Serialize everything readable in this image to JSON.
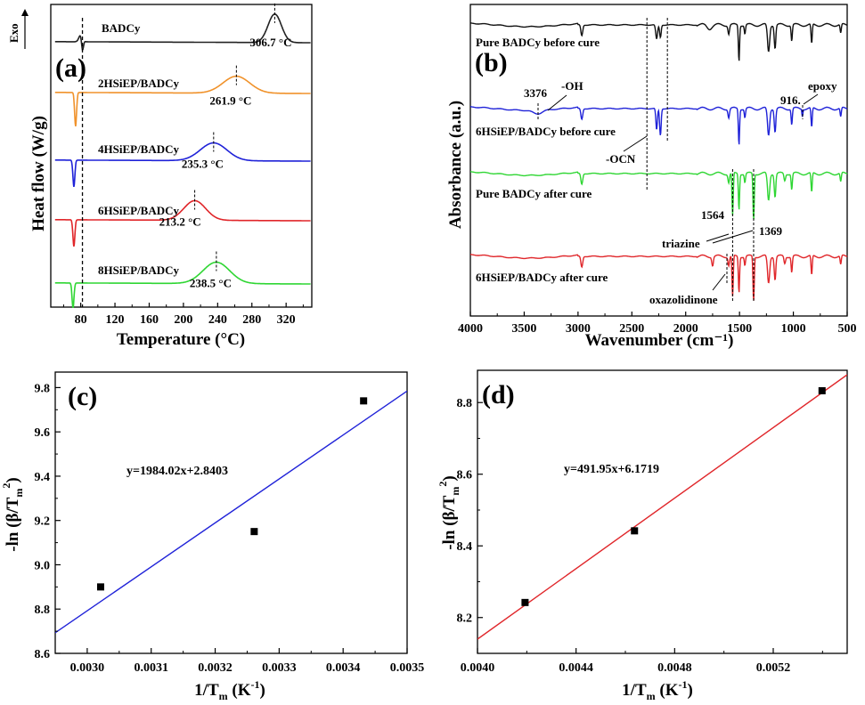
{
  "chart_data": [
    {
      "id": "a",
      "panel_label": "(a)",
      "type": "line",
      "xlabel": "Temperature (°C)",
      "ylabel": "Heat flow (W/g)",
      "exo_label": "Exo",
      "xlim": [
        45,
        350
      ],
      "ticks": [
        80,
        120,
        160,
        200,
        240,
        280,
        320
      ],
      "tick_labels": [
        "80",
        "120",
        "160",
        "200",
        "240",
        "280",
        "320"
      ],
      "dashed_reference_x": 82,
      "series": [
        {
          "name": "BADCy",
          "color": "#222222",
          "endo_temp": 82,
          "peak_temp": 306.7,
          "peak_label": "306.7 °C"
        },
        {
          "name": "2HSiEP/BADCy",
          "color": "#f0922b",
          "endo_temp": 74,
          "peak_temp": 261.9,
          "peak_label": "261.9 °C"
        },
        {
          "name": "4HSiEP/BADCy",
          "color": "#1f22d8",
          "endo_temp": 72,
          "peak_temp": 235.3,
          "peak_label": "235.3 °C"
        },
        {
          "name": "6HSiEP/BADCy",
          "color": "#e0262a",
          "endo_temp": 72,
          "peak_temp": 213.2,
          "peak_label": "213.2 °C"
        },
        {
          "name": "8HSiEP/BADCy",
          "color": "#2fd633",
          "endo_temp": 71,
          "peak_temp": 238.5,
          "peak_label": "238.5 °C"
        }
      ]
    },
    {
      "id": "b",
      "panel_label": "(b)",
      "type": "line",
      "xlabel": "Wavenumber (cm⁻¹)",
      "ylabel": "Absorbance (a.u.)",
      "xlim": [
        4000,
        500
      ],
      "ticks": [
        4000,
        3500,
        3000,
        2500,
        2000,
        1500,
        1000,
        500
      ],
      "tick_labels": [
        "4000",
        "3500",
        "3000",
        "2500",
        "2000",
        "1500",
        "1000",
        "500"
      ],
      "series": [
        {
          "name": "Pure BADCy before cure",
          "color": "#111111"
        },
        {
          "name": "6HSiEP/BADCy before cure",
          "color": "#1f22d8"
        },
        {
          "name": "Pure BADCy after cure",
          "color": "#2fd633"
        },
        {
          "name": "6HSiEP/BADCy after cure",
          "color": "#e0262a"
        }
      ],
      "dashed_lines_x": [
        2360,
        2170,
        1564,
        1369
      ],
      "annotations": {
        "v3376": "3376",
        "oh": "-OH",
        "ocn": "-OCN",
        "v916": "916.",
        "epoxy": "epoxy",
        "v1564": "1564",
        "v1369": "1369",
        "triazine": "triazine",
        "oxazolidinone": "oxazolidinone"
      }
    },
    {
      "id": "c",
      "panel_label": "(c)",
      "type": "scatter",
      "xlabel_main": "1/T",
      "xlabel_sub": "m",
      "xlabel_unit": " (K",
      "xlabel_sup": "-1",
      "xlabel_close": ")",
      "ylabel": "-ln (β/T",
      "ylabel_sub": "m",
      "ylabel_sup": "2",
      "ylabel_close": ")",
      "equation": "y=1984.02x+2.8403",
      "xlim": [
        0.00295,
        0.0035
      ],
      "ylim": [
        8.6,
        9.87
      ],
      "xticks": [
        0.003,
        0.0031,
        0.0032,
        0.0033,
        0.0034,
        0.0035
      ],
      "xtick_labels": [
        "0.0030",
        "0.0031",
        "0.0032",
        "0.0033",
        "0.0034",
        "0.0035"
      ],
      "yticks": [
        8.6,
        8.8,
        9.0,
        9.2,
        9.4,
        9.6,
        9.8
      ],
      "ytick_labels": [
        "8.6",
        "8.8",
        "9.0",
        "9.2",
        "9.4",
        "9.6",
        "9.8"
      ],
      "points": [
        [
          0.003021,
          8.9
        ],
        [
          0.003261,
          9.15
        ],
        [
          0.003432,
          9.74
        ]
      ],
      "fit": {
        "slope": 1984.02,
        "intercept": 2.8403,
        "color": "#1f22d8"
      }
    },
    {
      "id": "d",
      "panel_label": "(d)",
      "type": "scatter",
      "xlabel_main": "1/T",
      "xlabel_sub": "m",
      "xlabel_unit": " (K",
      "xlabel_sup": "-1",
      "xlabel_close": ")",
      "ylabel": "-ln (β/T",
      "ylabel_sub": "m",
      "ylabel_sup": "2",
      "ylabel_close": ")",
      "equation": "y=491.95x+6.1719",
      "xlim": [
        0.004,
        0.0055
      ],
      "ylim": [
        8.1,
        8.89
      ],
      "xticks": [
        0.004,
        0.0044,
        0.0048,
        0.0052
      ],
      "xtick_labels": [
        "0.0040",
        "0.0044",
        "0.0048",
        "0.0052"
      ],
      "yticks": [
        8.2,
        8.4,
        8.6,
        8.8
      ],
      "ytick_labels": [
        "8.2",
        "8.4",
        "8.6",
        "8.8"
      ],
      "points": [
        [
          0.004193,
          8.242
        ],
        [
          0.004637,
          8.442
        ],
        [
          0.005398,
          8.833
        ]
      ],
      "fit": {
        "slope": 491.95,
        "intercept": 6.1719,
        "color": "#e0262a"
      }
    }
  ]
}
